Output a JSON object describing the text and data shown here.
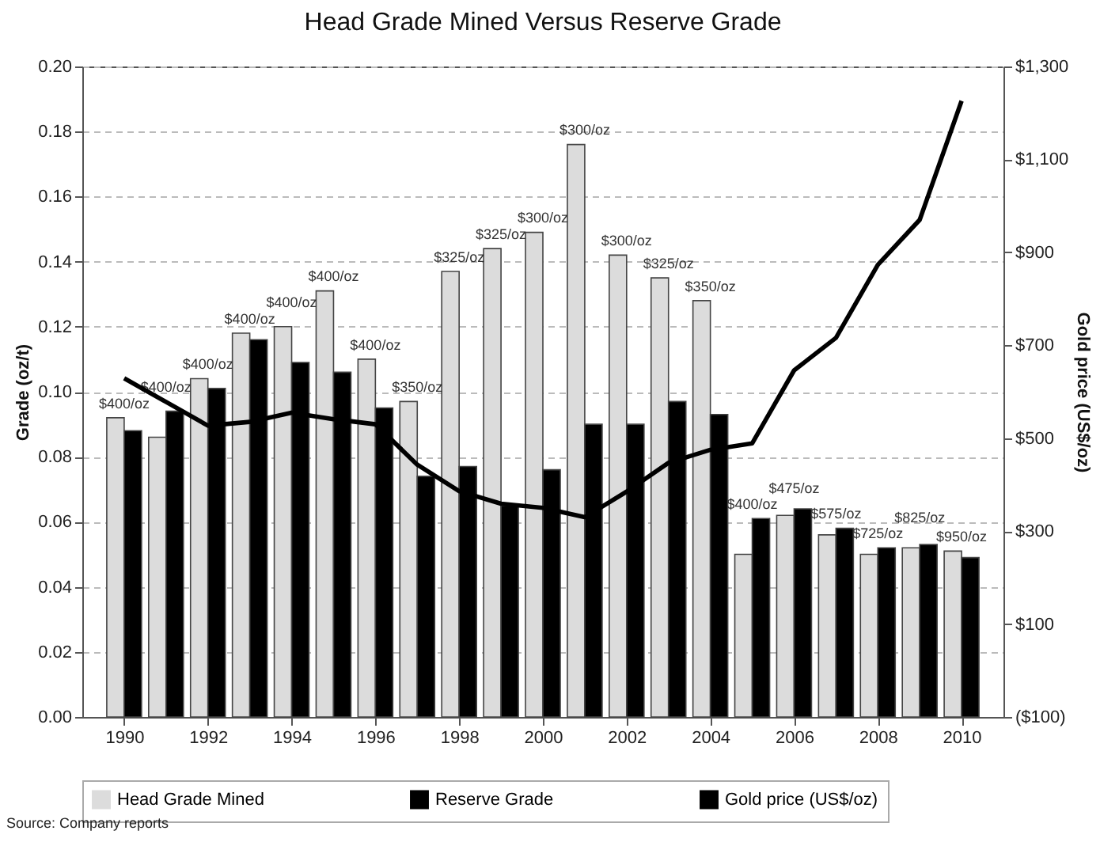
{
  "chart_data": {
    "type": "bar",
    "title": "Head Grade Mined Versus Reserve Grade",
    "ylabel": "Grade (oz/t)",
    "y2label": "Gold price (US$/oz)",
    "x": [
      1990,
      1991,
      1992,
      1993,
      1994,
      1995,
      1996,
      1997,
      1998,
      1999,
      2000,
      2001,
      2002,
      2003,
      2004,
      2005,
      2006,
      2007,
      2008,
      2009,
      2010
    ],
    "xlim": [
      1989,
      2011
    ],
    "xticks": [
      1990,
      1992,
      1994,
      1996,
      1998,
      2000,
      2002,
      2004,
      2006,
      2008,
      2010
    ],
    "ylim": [
      0,
      0.2
    ],
    "yticks": [
      {
        "value": 0,
        "label": "0.00"
      },
      0.02,
      0.04,
      0.06,
      0.08,
      {
        "value": 0.1,
        "label": "0.10"
      },
      0.12,
      0.14,
      0.16,
      0.18,
      {
        "value": 0.2,
        "label": "0.20"
      }
    ],
    "y2lim": [
      -100,
      1300
    ],
    "y2ticks": [
      {
        "value": -100,
        "label": "($100)"
      },
      {
        "value": 100,
        "label": "$100"
      },
      {
        "value": 300,
        "label": "$300"
      },
      {
        "value": 500,
        "label": "$500"
      },
      {
        "value": 700,
        "label": "$700"
      },
      {
        "value": 900,
        "label": "$900"
      },
      {
        "value": 1100,
        "label": "$1,100"
      },
      {
        "value": 1300,
        "label": "$1,300"
      }
    ],
    "series": [
      {
        "name": "Head Grade Mined",
        "color": "#dcdcdc",
        "values": [
          0.092,
          0.086,
          0.104,
          0.118,
          0.12,
          0.131,
          0.11,
          0.097,
          0.137,
          0.144,
          0.149,
          0.176,
          0.142,
          0.135,
          0.128,
          0.05,
          0.062,
          0.056,
          0.05,
          0.052,
          0.051
        ]
      },
      {
        "name": "Reserve Grade",
        "color": "#000000",
        "values": [
          0.088,
          0.094,
          0.101,
          0.116,
          0.109,
          0.106,
          0.095,
          0.074,
          0.077,
          0.065,
          0.076,
          0.09,
          0.09,
          0.097,
          0.093,
          0.061,
          0.064,
          0.058,
          0.052,
          0.053,
          0.049
        ]
      },
      {
        "name": "Gold price (US$/oz)",
        "type": "line",
        "axis": "y2",
        "color": "#000000",
        "values": [
          629,
          578,
          527,
          535,
          555,
          541,
          530,
          443,
          386,
          359,
          350,
          330,
          385,
          447,
          475,
          489,
          646,
          716,
          873,
          970,
          1226
        ]
      }
    ],
    "grid": "y",
    "legend": "bottom",
    "annotations": [
      {
        "text": "$400/oz",
        "x": 1990,
        "y": 0.092
      },
      {
        "text": "$400/oz",
        "x": 1991,
        "y": 0.094
      },
      {
        "text": "$400/oz",
        "x": 1992,
        "y": 0.104
      },
      {
        "text": "$400/oz",
        "x": 1993,
        "y": 0.118
      },
      {
        "text": "$400/oz",
        "x": 1994,
        "y": 0.12
      },
      {
        "text": "$400/oz",
        "x": 1995,
        "y": 0.131
      },
      {
        "text": "$400/oz",
        "x": 1996,
        "y": 0.11
      },
      {
        "text": "$350/oz",
        "x": 1997,
        "y": 0.097
      },
      {
        "text": "$325/oz",
        "x": 1998,
        "y": 0.137
      },
      {
        "text": "$325/oz",
        "x": 1999,
        "y": 0.144
      },
      {
        "text": "$300/oz",
        "x": 2000,
        "y": 0.149
      },
      {
        "text": "$300/oz",
        "x": 2001,
        "y": 0.176
      },
      {
        "text": "$300/oz",
        "x": 2002,
        "y": 0.142
      },
      {
        "text": "$325/oz",
        "x": 2003,
        "y": 0.135
      },
      {
        "text": "$350/oz",
        "x": 2004,
        "y": 0.128
      },
      {
        "text": "$400/oz",
        "x": 2005,
        "y": 0.061
      },
      {
        "text": "$475/oz",
        "x": 2006,
        "y": 0.064
      },
      {
        "text": "$575/oz",
        "x": 2007,
        "y": 0.058
      },
      {
        "text": "$725/oz",
        "x": 2008,
        "y": 0.052
      },
      {
        "text": "$825/oz",
        "x": 2009,
        "y": 0.053
      },
      {
        "text": "$950/oz",
        "x": 2010,
        "y": 0.051
      },
      "Source: Company reports"
    ]
  }
}
